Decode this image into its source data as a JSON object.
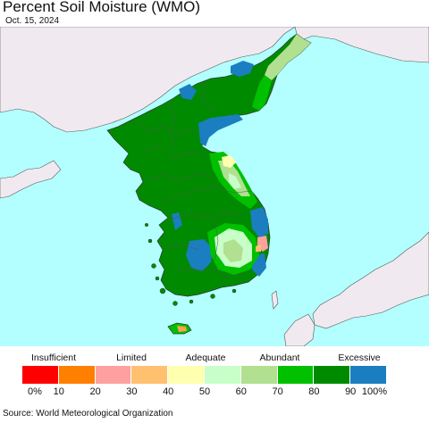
{
  "header": {
    "title": "Percent Soil Moisture (WMO)",
    "date": "Oct. 15, 2024"
  },
  "map": {
    "region": "Korean Peninsula",
    "colors": {
      "ocean": "#b3ffff",
      "foreign_land": "#f0eaf0"
    }
  },
  "legend": {
    "categories": [
      {
        "label": "Insufficient"
      },
      {
        "label": "Limited"
      },
      {
        "label": "Adequate"
      },
      {
        "label": "Abundant"
      },
      {
        "label": "Excessive"
      }
    ],
    "bins": [
      {
        "color": "#ff0000"
      },
      {
        "color": "#ff8000"
      },
      {
        "color": "#ffa0a0"
      },
      {
        "color": "#ffc070"
      },
      {
        "color": "#ffffb0"
      },
      {
        "color": "#c8ffc8"
      },
      {
        "color": "#b0e090"
      },
      {
        "color": "#00c000"
      },
      {
        "color": "#008a00"
      },
      {
        "color": "#1a7ec0"
      }
    ],
    "ticks": [
      "0%",
      "10",
      "20",
      "30",
      "40",
      "50",
      "60",
      "70",
      "80",
      "90",
      "100%"
    ]
  },
  "footer": {
    "source": "Source: World Meteorological Organization"
  }
}
